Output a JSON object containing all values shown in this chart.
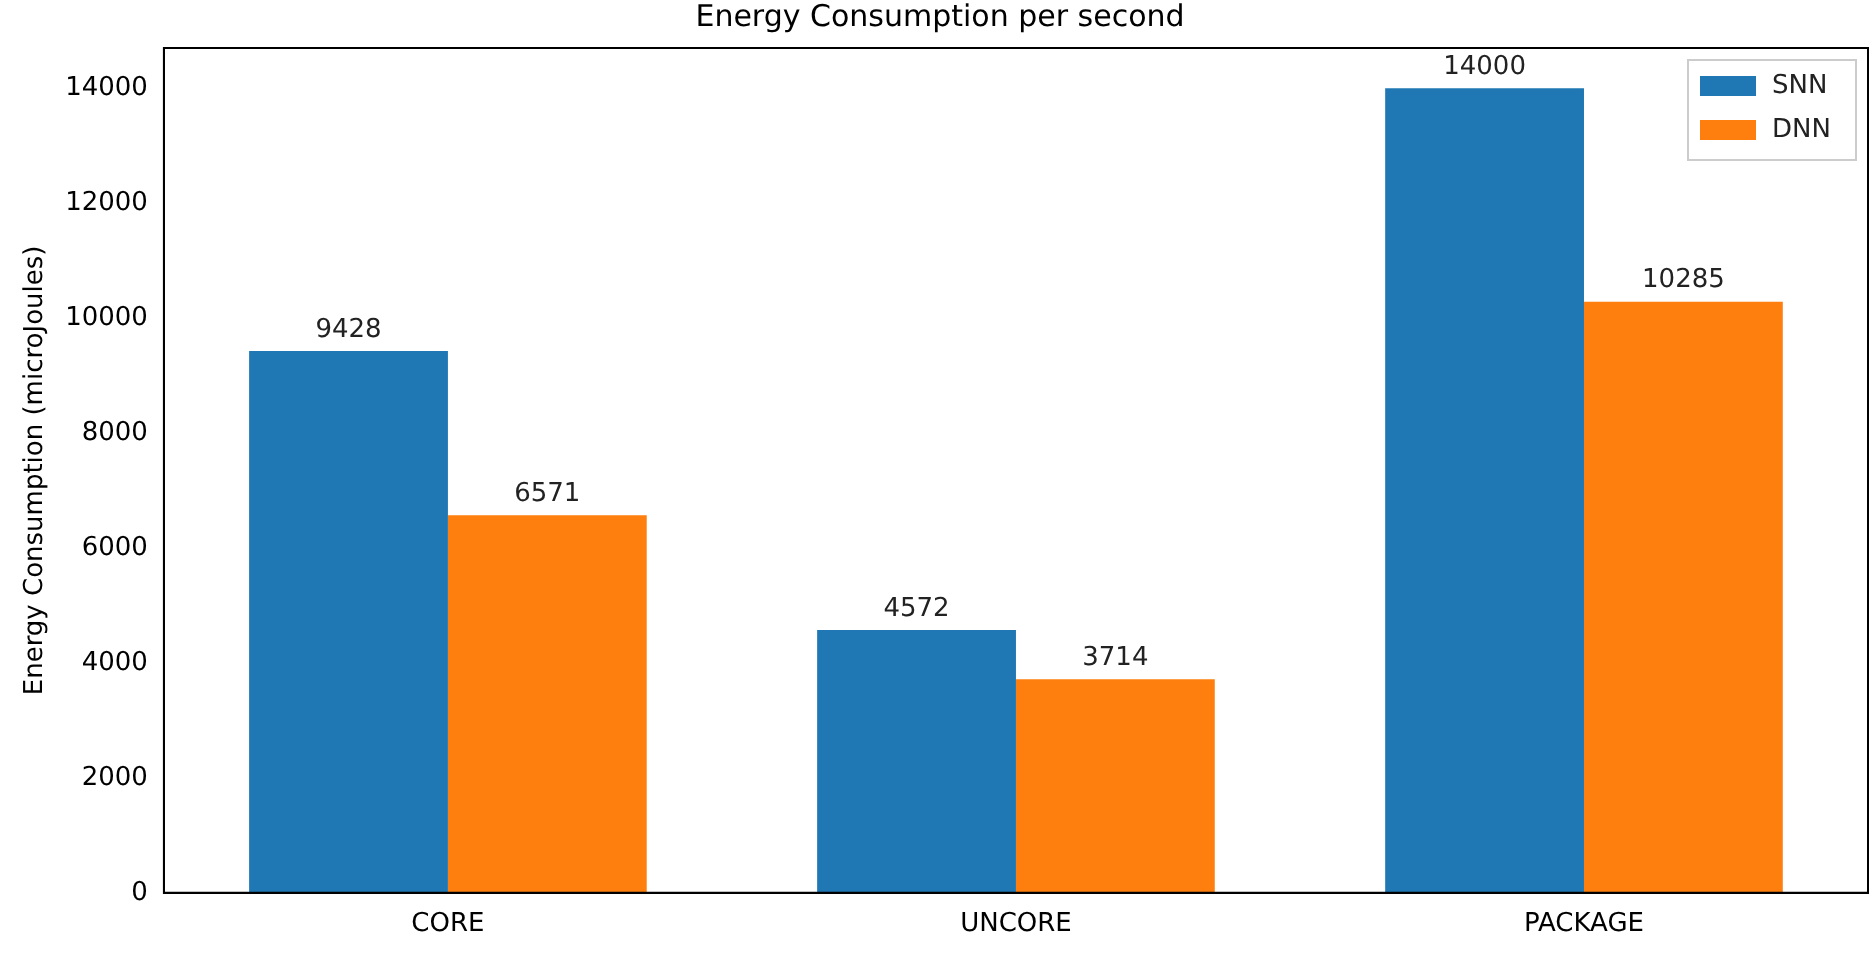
{
  "chart_data": {
    "type": "bar",
    "title": "Energy Consumption per second",
    "ylabel": "Energy Consumption (microJoules)",
    "categories": [
      "CORE",
      "UNCORE",
      "PACKAGE"
    ],
    "series": [
      {
        "name": "SNN",
        "color": "#1f77b4",
        "values": [
          9428,
          4572,
          14000
        ]
      },
      {
        "name": "DNN",
        "color": "#ff7f0e",
        "values": [
          6571,
          3714,
          10285
        ]
      }
    ],
    "ylim": [
      0,
      14700
    ],
    "yticks": [
      0,
      2000,
      4000,
      6000,
      8000,
      10000,
      12000,
      14000
    ],
    "grid": false,
    "legend": "top right",
    "data_labels": true
  }
}
